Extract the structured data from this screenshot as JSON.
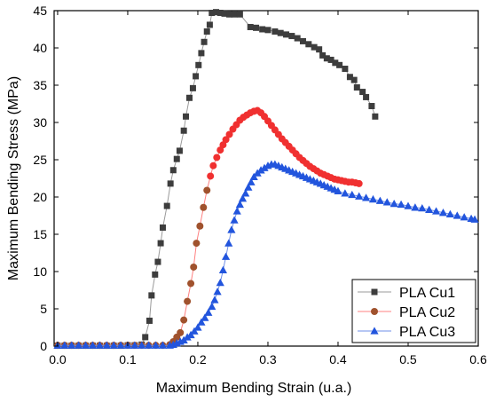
{
  "chart_data": {
    "type": "scatter",
    "xlabel": "Maximum Bending Strain (u.a.)",
    "ylabel": "Maximum Bending Stress (MPa)",
    "xlim": [
      -0.005,
      0.6
    ],
    "ylim": [
      0,
      45
    ],
    "xticks": [
      0.0,
      0.1,
      0.2,
      0.3,
      0.4,
      0.5,
      0.6
    ],
    "yticks": [
      0,
      5,
      10,
      15,
      20,
      25,
      30,
      35,
      40,
      45
    ],
    "legend_position": "bottom-right",
    "series": [
      {
        "name": "PLA Cu1",
        "marker": "square",
        "color": "#3d3d3d",
        "line_color": "#9a9a9a",
        "points": [
          [
            0.0,
            0.05
          ],
          [
            0.01,
            0.05
          ],
          [
            0.02,
            0.05
          ],
          [
            0.03,
            0.05
          ],
          [
            0.04,
            0.05
          ],
          [
            0.05,
            0.05
          ],
          [
            0.06,
            0.05
          ],
          [
            0.07,
            0.05
          ],
          [
            0.08,
            0.05
          ],
          [
            0.09,
            0.05
          ],
          [
            0.1,
            0.1
          ],
          [
            0.11,
            0.1
          ],
          [
            0.12,
            0.2
          ],
          [
            0.125,
            1.2
          ],
          [
            0.131,
            3.4
          ],
          [
            0.134,
            6.8
          ],
          [
            0.139,
            9.6
          ],
          [
            0.143,
            11.3
          ],
          [
            0.147,
            13.8
          ],
          [
            0.15,
            15.9
          ],
          [
            0.156,
            18.8
          ],
          [
            0.161,
            21.8
          ],
          [
            0.165,
            23.6
          ],
          [
            0.17,
            25.1
          ],
          [
            0.174,
            26.2
          ],
          [
            0.18,
            28.9
          ],
          [
            0.183,
            30.8
          ],
          [
            0.188,
            33.3
          ],
          [
            0.193,
            34.6
          ],
          [
            0.197,
            36.2
          ],
          [
            0.201,
            37.7
          ],
          [
            0.205,
            39.3
          ],
          [
            0.209,
            40.8
          ],
          [
            0.213,
            42.2
          ],
          [
            0.217,
            43.1
          ],
          [
            0.22,
            44.7
          ],
          [
            0.226,
            44.8
          ],
          [
            0.232,
            44.7
          ],
          [
            0.238,
            44.6
          ],
          [
            0.245,
            44.5
          ],
          [
            0.252,
            44.5
          ],
          [
            0.26,
            44.5
          ],
          [
            0.275,
            42.8
          ],
          [
            0.283,
            42.7
          ],
          [
            0.292,
            42.5
          ],
          [
            0.3,
            42.4
          ],
          [
            0.31,
            42.2
          ],
          [
            0.318,
            42.0
          ],
          [
            0.326,
            41.8
          ],
          [
            0.334,
            41.6
          ],
          [
            0.342,
            41.3
          ],
          [
            0.35,
            40.9
          ],
          [
            0.358,
            40.5
          ],
          [
            0.366,
            40.1
          ],
          [
            0.373,
            39.8
          ],
          [
            0.378,
            39.0
          ],
          [
            0.384,
            38.6
          ],
          [
            0.39,
            38.4
          ],
          [
            0.396,
            38.0
          ],
          [
            0.402,
            37.7
          ],
          [
            0.41,
            37.2
          ],
          [
            0.417,
            36.1
          ],
          [
            0.423,
            35.7
          ],
          [
            0.427,
            34.7
          ],
          [
            0.435,
            34.1
          ],
          [
            0.44,
            33.4
          ],
          [
            0.448,
            32.2
          ],
          [
            0.453,
            30.8
          ]
        ]
      },
      {
        "name": "PLA Cu2",
        "marker": "circle",
        "color": "#a0522d",
        "line_color": "#ff8080",
        "points": [
          [
            0.0,
            0.1
          ],
          [
            0.01,
            0.1
          ],
          [
            0.02,
            0.1
          ],
          [
            0.03,
            0.1
          ],
          [
            0.04,
            0.1
          ],
          [
            0.05,
            0.1
          ],
          [
            0.06,
            0.1
          ],
          [
            0.07,
            0.1
          ],
          [
            0.08,
            0.1
          ],
          [
            0.09,
            0.1
          ],
          [
            0.1,
            0.1
          ],
          [
            0.11,
            0.1
          ],
          [
            0.12,
            0.1
          ],
          [
            0.13,
            0.1
          ],
          [
            0.14,
            0.1
          ],
          [
            0.15,
            0.1
          ],
          [
            0.16,
            0.2
          ],
          [
            0.165,
            0.6
          ],
          [
            0.17,
            1.2
          ],
          [
            0.175,
            1.8
          ],
          [
            0.18,
            3.5
          ],
          [
            0.185,
            6.0
          ],
          [
            0.19,
            8.4
          ],
          [
            0.194,
            10.6
          ],
          [
            0.198,
            13.8
          ],
          [
            0.203,
            16.1
          ],
          [
            0.208,
            18.6
          ],
          [
            0.213,
            20.9
          ],
          [
            0.218,
            22.8
          ],
          [
            0.222,
            24.2
          ],
          [
            0.227,
            25.3
          ],
          [
            0.232,
            26.3
          ],
          [
            0.236,
            27.0
          ],
          [
            0.24,
            27.7
          ],
          [
            0.245,
            28.4
          ],
          [
            0.25,
            29.1
          ],
          [
            0.255,
            29.7
          ],
          [
            0.26,
            30.3
          ],
          [
            0.265,
            30.7
          ],
          [
            0.27,
            31.0
          ],
          [
            0.275,
            31.3
          ],
          [
            0.28,
            31.5
          ],
          [
            0.285,
            31.6
          ],
          [
            0.29,
            31.3
          ],
          [
            0.295,
            30.8
          ],
          [
            0.3,
            30.2
          ],
          [
            0.305,
            29.6
          ],
          [
            0.31,
            29.0
          ],
          [
            0.315,
            28.4
          ],
          [
            0.32,
            27.8
          ],
          [
            0.325,
            27.3
          ],
          [
            0.33,
            26.8
          ],
          [
            0.335,
            26.3
          ],
          [
            0.34,
            25.8
          ],
          [
            0.345,
            25.3
          ],
          [
            0.35,
            24.9
          ],
          [
            0.355,
            24.5
          ],
          [
            0.36,
            24.1
          ],
          [
            0.365,
            23.8
          ],
          [
            0.37,
            23.5
          ],
          [
            0.375,
            23.2
          ],
          [
            0.38,
            23.0
          ],
          [
            0.385,
            22.8
          ],
          [
            0.39,
            22.6
          ],
          [
            0.395,
            22.4
          ],
          [
            0.4,
            22.3
          ],
          [
            0.405,
            22.2
          ],
          [
            0.41,
            22.1
          ],
          [
            0.415,
            22.0
          ],
          [
            0.42,
            22.0
          ],
          [
            0.425,
            21.9
          ],
          [
            0.43,
            21.8
          ]
        ]
      },
      {
        "name": "PLA Cu3",
        "marker": "triangle",
        "color": "#2255dd",
        "line_color": "#6f8fe8",
        "points": [
          [
            0.0,
            0.1
          ],
          [
            0.01,
            0.1
          ],
          [
            0.02,
            0.1
          ],
          [
            0.03,
            0.1
          ],
          [
            0.04,
            0.1
          ],
          [
            0.05,
            0.1
          ],
          [
            0.06,
            0.1
          ],
          [
            0.07,
            0.1
          ],
          [
            0.08,
            0.1
          ],
          [
            0.09,
            0.1
          ],
          [
            0.1,
            0.1
          ],
          [
            0.11,
            0.1
          ],
          [
            0.12,
            0.1
          ],
          [
            0.13,
            0.1
          ],
          [
            0.14,
            0.1
          ],
          [
            0.15,
            0.1
          ],
          [
            0.16,
            0.1
          ],
          [
            0.165,
            0.2
          ],
          [
            0.17,
            0.4
          ],
          [
            0.175,
            0.6
          ],
          [
            0.18,
            0.8
          ],
          [
            0.185,
            1.2
          ],
          [
            0.19,
            1.5
          ],
          [
            0.195,
            2.0
          ],
          [
            0.2,
            2.5
          ],
          [
            0.205,
            3.2
          ],
          [
            0.21,
            3.8
          ],
          [
            0.215,
            4.5
          ],
          [
            0.22,
            5.3
          ],
          [
            0.224,
            6.2
          ],
          [
            0.228,
            7.3
          ],
          [
            0.232,
            8.5
          ],
          [
            0.236,
            10.2
          ],
          [
            0.24,
            12.0
          ],
          [
            0.244,
            13.8
          ],
          [
            0.248,
            15.6
          ],
          [
            0.252,
            16.9
          ],
          [
            0.256,
            18.1
          ],
          [
            0.26,
            19.0
          ],
          [
            0.264,
            19.8
          ],
          [
            0.268,
            20.5
          ],
          [
            0.272,
            21.3
          ],
          [
            0.276,
            22.0
          ],
          [
            0.28,
            22.7
          ],
          [
            0.285,
            23.2
          ],
          [
            0.29,
            23.6
          ],
          [
            0.295,
            23.9
          ],
          [
            0.3,
            24.2
          ],
          [
            0.305,
            24.4
          ],
          [
            0.31,
            24.4
          ],
          [
            0.315,
            24.2
          ],
          [
            0.32,
            24.0
          ],
          [
            0.325,
            23.8
          ],
          [
            0.33,
            23.6
          ],
          [
            0.335,
            23.4
          ],
          [
            0.34,
            23.2
          ],
          [
            0.345,
            23.0
          ],
          [
            0.35,
            22.8
          ],
          [
            0.355,
            22.6
          ],
          [
            0.36,
            22.4
          ],
          [
            0.365,
            22.2
          ],
          [
            0.37,
            22.0
          ],
          [
            0.375,
            21.8
          ],
          [
            0.38,
            21.6
          ],
          [
            0.385,
            21.4
          ],
          [
            0.39,
            21.2
          ],
          [
            0.395,
            21.0
          ],
          [
            0.4,
            20.8
          ],
          [
            0.41,
            20.5
          ],
          [
            0.42,
            20.3
          ],
          [
            0.43,
            20.1
          ],
          [
            0.44,
            19.9
          ],
          [
            0.45,
            19.7
          ],
          [
            0.46,
            19.5
          ],
          [
            0.47,
            19.3
          ],
          [
            0.48,
            19.1
          ],
          [
            0.49,
            19.0
          ],
          [
            0.5,
            18.8
          ],
          [
            0.51,
            18.6
          ],
          [
            0.52,
            18.5
          ],
          [
            0.53,
            18.3
          ],
          [
            0.54,
            18.1
          ],
          [
            0.55,
            17.9
          ],
          [
            0.56,
            17.7
          ],
          [
            0.57,
            17.5
          ],
          [
            0.58,
            17.3
          ],
          [
            0.59,
            17.1
          ],
          [
            0.595,
            17.0
          ]
        ]
      }
    ]
  }
}
